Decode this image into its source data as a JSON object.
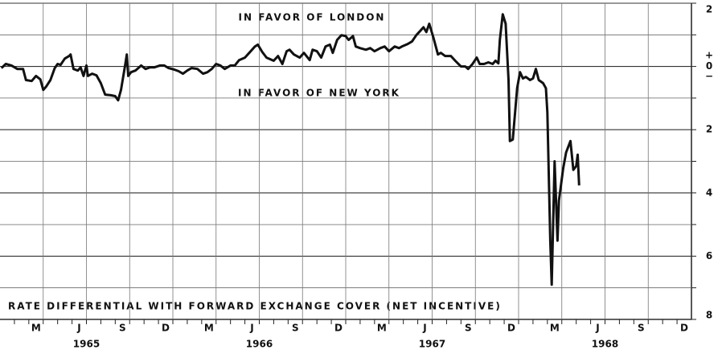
{
  "chart_data": {
    "type": "line",
    "annotations": [
      "IN FAVOR OF LONDON",
      "IN FAVOR OF NEW YORK",
      "RATE DIFFERENTIAL WITH FORWARD EXCHANGE COVER (NET INCENTIVE)"
    ],
    "sign_labels": [
      "+",
      "−"
    ],
    "color": "#111111",
    "grid": true,
    "xlim": [
      0,
      48
    ],
    "ylim": [
      -8,
      2
    ],
    "yticks": [
      2,
      0,
      {
        "value": -2,
        "label": "2"
      },
      {
        "value": -4,
        "label": "4"
      },
      {
        "value": -6,
        "label": "6"
      },
      {
        "value": -8,
        "label": "8"
      }
    ],
    "minor_yticks": [
      1,
      -1,
      -3,
      -5,
      -7
    ],
    "xticks": [
      1,
      2,
      3,
      4,
      5,
      6,
      7,
      8,
      9,
      10,
      11,
      12,
      13,
      14,
      15,
      16,
      17,
      18,
      19,
      20,
      21,
      22,
      23,
      24,
      25,
      26,
      27,
      28,
      29,
      30,
      31,
      32,
      33,
      34,
      35,
      36,
      37,
      38,
      39,
      40,
      41,
      42,
      43,
      44,
      45,
      46,
      47
    ],
    "month_labels": [
      {
        "value": 2.5,
        "label": "M"
      },
      {
        "value": 5.5,
        "label": "J"
      },
      {
        "value": 8.5,
        "label": "S"
      },
      {
        "value": 11.5,
        "label": "D"
      },
      {
        "value": 14.5,
        "label": "M"
      },
      {
        "value": 17.5,
        "label": "J"
      },
      {
        "value": 20.5,
        "label": "S"
      },
      {
        "value": 23.5,
        "label": "D"
      },
      {
        "value": 26.5,
        "label": "M"
      },
      {
        "value": 29.5,
        "label": "J"
      },
      {
        "value": 32.5,
        "label": "S"
      },
      {
        "value": 35.5,
        "label": "D"
      },
      {
        "value": 38.5,
        "label": "M"
      },
      {
        "value": 41.5,
        "label": "J"
      },
      {
        "value": 44.5,
        "label": "S"
      },
      {
        "value": 47.5,
        "label": "D"
      }
    ],
    "year_labels": [
      {
        "value": 6,
        "label": "1965"
      },
      {
        "value": 18,
        "label": "1966"
      },
      {
        "value": 30,
        "label": "1967"
      },
      {
        "value": 42,
        "label": "1968"
      }
    ],
    "x": [
      0.1,
      0.4,
      0.8,
      1.2,
      1.6,
      1.8,
      2.2,
      2.5,
      2.8,
      3.0,
      3.2,
      3.5,
      3.8,
      4.0,
      4.2,
      4.5,
      4.8,
      4.9,
      5.1,
      5.4,
      5.6,
      5.8,
      6.0,
      6.1,
      6.4,
      6.7,
      7.0,
      7.3,
      7.7,
      8.0,
      8.2,
      8.4,
      8.7,
      8.8,
      8.9,
      9.1,
      9.4,
      9.6,
      9.8,
      10.1,
      10.4,
      10.7,
      11.1,
      11.4,
      11.7,
      12.1,
      12.4,
      12.7,
      13.0,
      13.3,
      13.7,
      14.1,
      14.4,
      14.7,
      15.0,
      15.3,
      15.6,
      16.0,
      16.3,
      16.6,
      17.0,
      17.3,
      17.7,
      17.9,
      18.2,
      18.5,
      19.0,
      19.3,
      19.6,
      19.9,
      20.1,
      20.4,
      20.8,
      21.1,
      21.5,
      21.7,
      22.0,
      22.3,
      22.6,
      22.9,
      23.1,
      23.4,
      23.7,
      24.0,
      24.2,
      24.5,
      24.7,
      25.0,
      25.4,
      25.7,
      26.0,
      26.4,
      26.7,
      27.0,
      27.4,
      27.7,
      27.9,
      28.3,
      28.6,
      28.9,
      29.2,
      29.4,
      29.6,
      29.8,
      30.1,
      30.4,
      30.6,
      30.9,
      31.3,
      31.6,
      32.0,
      32.3,
      32.5,
      32.8,
      33.1,
      33.3,
      33.6,
      33.9,
      34.2,
      34.4,
      34.6,
      34.7,
      34.9,
      35.1,
      35.3,
      35.4,
      35.6,
      35.9,
      36.1,
      36.3,
      36.5,
      36.8,
      37.0,
      37.2,
      37.4,
      37.7,
      37.9,
      38.0,
      38.2,
      38.3,
      38.5,
      38.7,
      38.8,
      39.1,
      39.3,
      39.6,
      39.8,
      40.0,
      40.1,
      40.2
    ],
    "values": [
      -0.05,
      0.08,
      0.03,
      -0.08,
      -0.08,
      -0.43,
      -0.46,
      -0.3,
      -0.41,
      -0.74,
      -0.64,
      -0.43,
      -0.05,
      0.08,
      0.05,
      0.25,
      0.33,
      0.38,
      -0.08,
      -0.13,
      -0.03,
      -0.3,
      0.03,
      -0.3,
      -0.23,
      -0.28,
      -0.53,
      -0.89,
      -0.91,
      -0.94,
      -1.07,
      -0.74,
      0.08,
      0.38,
      -0.3,
      -0.18,
      -0.13,
      -0.05,
      0.03,
      -0.08,
      -0.03,
      -0.03,
      0.03,
      0.03,
      -0.05,
      -0.1,
      -0.15,
      -0.23,
      -0.13,
      -0.05,
      -0.08,
      -0.23,
      -0.18,
      -0.08,
      0.08,
      0.03,
      -0.08,
      0.03,
      0.03,
      0.2,
      0.28,
      0.43,
      0.63,
      0.69,
      0.46,
      0.28,
      0.18,
      0.33,
      0.08,
      0.48,
      0.53,
      0.38,
      0.28,
      0.43,
      0.2,
      0.53,
      0.48,
      0.28,
      0.63,
      0.69,
      0.43,
      0.84,
      0.99,
      0.96,
      0.84,
      0.96,
      0.63,
      0.58,
      0.53,
      0.58,
      0.48,
      0.58,
      0.63,
      0.48,
      0.63,
      0.58,
      0.63,
      0.71,
      0.79,
      0.99,
      1.14,
      1.24,
      1.09,
      1.35,
      0.89,
      0.38,
      0.43,
      0.33,
      0.33,
      0.18,
      0,
      0,
      -0.08,
      0.08,
      0.28,
      0.08,
      0.08,
      0.13,
      0.08,
      0.18,
      0.1,
      0.84,
      1.65,
      1.35,
      -0.43,
      -2.36,
      -2.31,
      -0.69,
      -0.18,
      -0.38,
      -0.33,
      -0.43,
      -0.38,
      -0.08,
      -0.43,
      -0.53,
      -0.69,
      -1.45,
      -5.51,
      -6.9,
      -3.0,
      -5.51,
      -4.24,
      -3.22,
      -2.72,
      -2.36,
      -3.27,
      -3.15,
      -2.79,
      -3.76
    ]
  }
}
